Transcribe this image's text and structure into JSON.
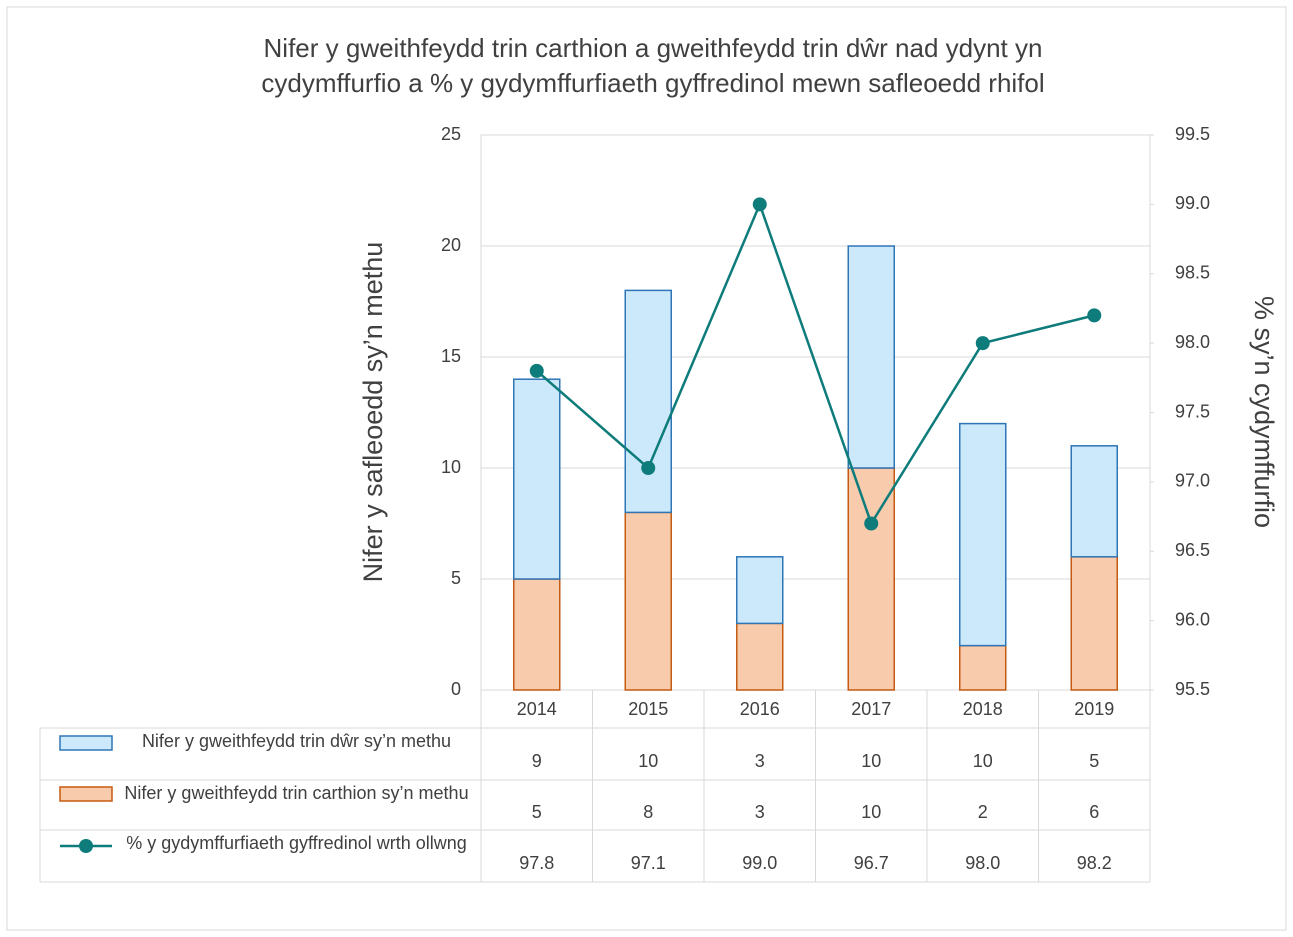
{
  "chart_data": {
    "type": "bar",
    "title": "Nifer y gweithfeydd trin carthion a gweithfeydd trin dŵr nad ydynt yn cydymffurfio a % y gydymffurfiaeth gyffredinol mewn safleoedd rhifol",
    "title_lines": [
      "Nifer y gweithfeydd trin carthion a gweithfeydd trin dŵr nad ydynt yn",
      "cydymffurfio a % y gydymffurfiaeth gyffredinol mewn safleoedd rhifol"
    ],
    "ylabel": "Nifer y safleoedd sy’n methu",
    "y2label": "% sy’n cydymffurfio",
    "categories": [
      "2014",
      "2015",
      "2016",
      "2017",
      "2018",
      "2019"
    ],
    "series": [
      {
        "name": "Nifer y gweithfeydd trin dŵr sy’n methu",
        "type": "bar",
        "color": "#cce9fb",
        "edge": "#2e75b6",
        "values": [
          9,
          10,
          3,
          10,
          10,
          5
        ]
      },
      {
        "name": "Nifer y gweithfeydd trin carthion sy’n methu",
        "type": "bar",
        "color": "#f8cbad",
        "edge": "#c55a11",
        "values": [
          5,
          8,
          3,
          10,
          2,
          6
        ]
      },
      {
        "name": "% y gydymffurfiaeth gyffredinol wrth ollwng",
        "type": "line",
        "axis": "y2",
        "color": "#0e7c7b",
        "values": [
          97.8,
          97.1,
          99.0,
          96.7,
          98.0,
          98.2
        ],
        "value_labels": [
          "97.8",
          "97.1",
          "99.0",
          "96.7",
          "98.0",
          "98.2"
        ]
      }
    ],
    "ylim": [
      0,
      25
    ],
    "yticks": [
      0,
      5,
      10,
      15,
      20,
      25
    ],
    "y2lim": [
      95.5,
      99.5
    ],
    "y2ticks": [
      95.5,
      {
        "value": 96,
        "label": "96.0"
      },
      96.5,
      {
        "value": 97,
        "label": "97.0"
      },
      97.5,
      {
        "value": 98,
        "label": "98.0"
      },
      98.5,
      {
        "value": 99,
        "label": "99.0"
      },
      99.5
    ],
    "grid": true,
    "stacked": true
  }
}
